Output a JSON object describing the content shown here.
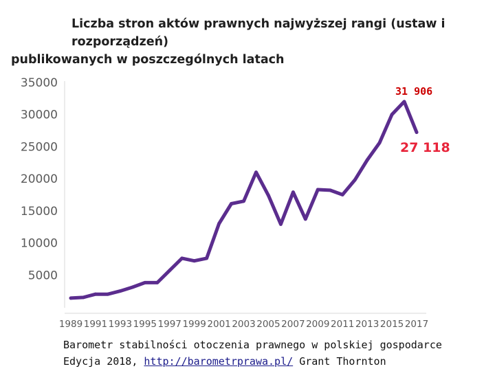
{
  "chart_data": {
    "type": "line",
    "title_line1": "Liczba stron aktów prawnych najwyższej rangi (ustaw i rozporządzeń)",
    "title_line2": "publikowanych w poszczególnych latach",
    "xlabel": "",
    "ylabel": "",
    "ylim": [
      0,
      35000
    ],
    "xlim": [
      1989,
      2017
    ],
    "y_ticks": [
      {
        "value": 5000,
        "label": "5000"
      },
      {
        "value": 10000,
        "label": "10000"
      },
      {
        "value": 15000,
        "label": "15000"
      },
      {
        "value": 20000,
        "label": "20000"
      },
      {
        "value": 25000,
        "label": "25000"
      },
      {
        "value": 30000,
        "label": "30000"
      },
      {
        "value": 35000,
        "label": "35000"
      }
    ],
    "x_ticks": [
      {
        "value": 1989,
        "label": "1989"
      },
      {
        "value": 1991,
        "label": "1991"
      },
      {
        "value": 1993,
        "label": "1993"
      },
      {
        "value": 1995,
        "label": "1995"
      },
      {
        "value": 1997,
        "label": "1997"
      },
      {
        "value": 1999,
        "label": "1999"
      },
      {
        "value": 2001,
        "label": "2001"
      },
      {
        "value": 2003,
        "label": "2003"
      },
      {
        "value": 2005,
        "label": "2005"
      },
      {
        "value": 2007,
        "label": "2007"
      },
      {
        "value": 2009,
        "label": "2009"
      },
      {
        "value": 2011,
        "label": "2011"
      },
      {
        "value": 2013,
        "label": "2013"
      },
      {
        "value": 2015,
        "label": "2015"
      },
      {
        "value": 2017,
        "label": "2017"
      }
    ],
    "series": [
      {
        "color": "#5b2d8e",
        "x": [
          1989,
          1990,
          1991,
          1992,
          1993,
          1994,
          1995,
          1996,
          1997,
          1998,
          1999,
          2000,
          2001,
          2002,
          2003,
          2004,
          2005,
          2006,
          2007,
          2008,
          2009,
          2010,
          2011,
          2012,
          2013,
          2014,
          2015,
          2016,
          2017
        ],
        "y": [
          1300,
          1400,
          1900,
          1900,
          2400,
          3000,
          3700,
          3700,
          5600,
          7500,
          7100,
          7500,
          12900,
          16000,
          16400,
          20900,
          17300,
          12800,
          17800,
          13600,
          18200,
          18100,
          17400,
          19700,
          22800,
          25500,
          29900,
          31906,
          27118
        ]
      }
    ],
    "annotations": [
      {
        "text": "31 906",
        "color": "#cc0000"
      },
      {
        "text": "27 118",
        "color": "#e8243a"
      }
    ],
    "grid": false,
    "legend": "none"
  },
  "caption": {
    "line1": "Barometr stabilności otoczenia prawnego w polskiej gospodarce",
    "line2_prefix": "Edycja 2018,",
    "link": "http://barometrprawa.pl/",
    "line2_suffix": "Grant Thornton"
  }
}
